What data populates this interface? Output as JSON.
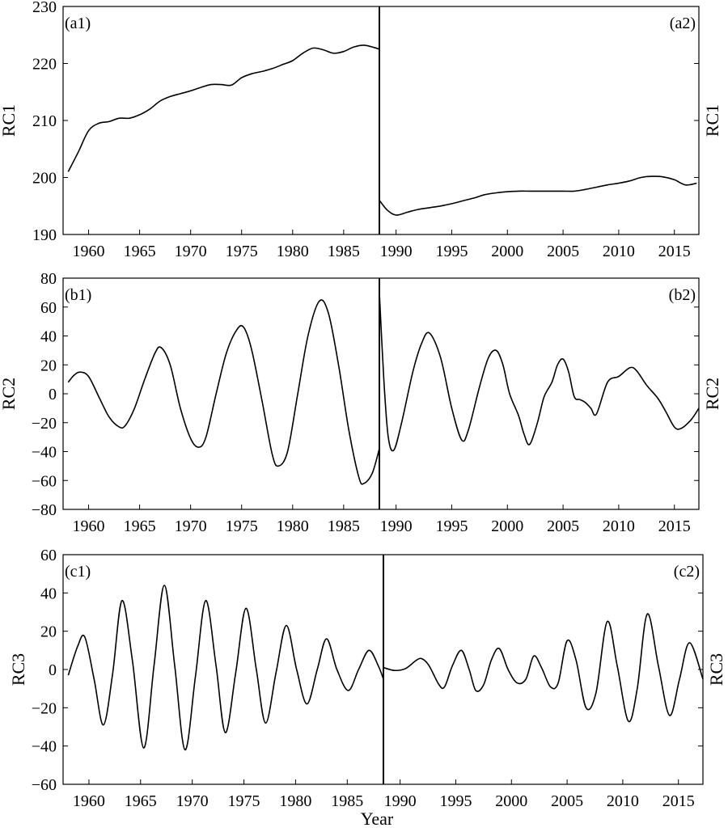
{
  "xlabel": "Year",
  "chart_data": [
    {
      "type": "line",
      "ylabel": "RC1",
      "ylim": [
        190,
        230
      ],
      "yticks": [
        190,
        200,
        210,
        220,
        230
      ],
      "left": {
        "tag": "(a1)",
        "xlim": [
          1957.5,
          1988.5
        ],
        "xticks": [
          1960,
          1965,
          1970,
          1975,
          1980,
          1985
        ],
        "x": [
          1958,
          1959,
          1960,
          1961,
          1962,
          1963,
          1964,
          1965,
          1966,
          1967,
          1968,
          1969,
          1970,
          1971,
          1972,
          1973,
          1974,
          1975,
          1976,
          1977,
          1978,
          1979,
          1980,
          1981,
          1982,
          1983,
          1984,
          1985,
          1986,
          1987,
          1988,
          1988.5
        ],
        "y": [
          201,
          204.5,
          208.2,
          209.5,
          209.8,
          210.4,
          210.4,
          211,
          212,
          213.4,
          214.2,
          214.7,
          215.2,
          215.8,
          216.3,
          216.3,
          216.2,
          217.5,
          218.2,
          218.6,
          219.1,
          219.8,
          220.5,
          221.8,
          222.7,
          222.4,
          221.8,
          222.1,
          222.9,
          223.2,
          222.8,
          222.5
        ]
      },
      "right": {
        "tag": "(a2)",
        "xlim": [
          1988.5,
          2017.2
        ],
        "xticks": [
          1990,
          1995,
          2000,
          2005,
          2010,
          2015
        ],
        "x": [
          1988.5,
          1989.2,
          1990,
          1991,
          1992,
          1993,
          1994,
          1995,
          1996,
          1997,
          1998,
          1999,
          2000,
          2001,
          2002,
          2003,
          2004,
          2005,
          2006,
          2007,
          2008,
          2009,
          2010,
          2011,
          2012,
          2013,
          2014,
          2015,
          2016,
          2017
        ],
        "y": [
          196,
          194.3,
          193.4,
          193.9,
          194.4,
          194.7,
          195,
          195.4,
          195.9,
          196.4,
          197,
          197.3,
          197.5,
          197.6,
          197.6,
          197.6,
          197.6,
          197.6,
          197.6,
          197.9,
          198.3,
          198.7,
          199,
          199.4,
          200,
          200.2,
          200.1,
          199.6,
          198.7,
          199
        ]
      }
    },
    {
      "type": "line",
      "ylabel": "RC2",
      "ylim": [
        -80,
        80
      ],
      "yticks": [
        -80,
        -60,
        -40,
        -20,
        0,
        20,
        40,
        60,
        80
      ],
      "left": {
        "tag": "(b1)",
        "xlim": [
          1957.5,
          1988.5
        ],
        "xticks": [
          1960,
          1965,
          1970,
          1975,
          1980,
          1985
        ],
        "x": [
          1958,
          1958.6,
          1959.2,
          1960,
          1961,
          1962,
          1963,
          1963.6,
          1964.5,
          1965.5,
          1966.5,
          1967.1,
          1968,
          1969,
          1970,
          1970.8,
          1971.5,
          1972.5,
          1973.5,
          1974.5,
          1975.2,
          1976,
          1977,
          1978,
          1978.6,
          1979.5,
          1980.5,
          1981.5,
          1982.6,
          1983.5,
          1984.5,
          1985.5,
          1986.5,
          1987,
          1987.8,
          1988.5
        ],
        "y": [
          8,
          13,
          15,
          12,
          -2,
          -16,
          -23,
          -22,
          -10,
          10,
          28,
          32,
          20,
          -10,
          -31,
          -37,
          -30,
          0,
          28,
          44,
          46,
          30,
          -5,
          -42,
          -50,
          -40,
          0,
          40,
          64,
          56,
          20,
          -25,
          -58,
          -62,
          -55,
          -38
        ]
      },
      "right": {
        "tag": "(b2)",
        "xlim": [
          1988.5,
          2017.2
        ],
        "xticks": [
          1990,
          1995,
          2000,
          2005,
          2010,
          2015
        ],
        "x": [
          1988.5,
          1988.9,
          1989.3,
          1989.8,
          1990.5,
          1991.5,
          1992.3,
          1993,
          1994,
          1995,
          1995.9,
          1996.5,
          1997.5,
          1998.3,
          1999,
          1999.6,
          2000.2,
          2001,
          2001.5,
          2002,
          2002.7,
          2003.3,
          2004,
          2004.5,
          2005,
          2005.5,
          2006,
          2006.5,
          2007,
          2007.5,
          2008,
          2009,
          2010,
          2011,
          2011.6,
          2012.5,
          2013.5,
          2014.2,
          2015,
          2015.6,
          2016.5,
          2017.2
        ],
        "y": [
          70,
          10,
          -30,
          -39,
          -20,
          15,
          35,
          42,
          25,
          -10,
          -32,
          -25,
          5,
          25,
          30,
          20,
          0,
          -15,
          -28,
          -35,
          -20,
          -2,
          8,
          20,
          24,
          15,
          -2,
          -4,
          -6,
          -10,
          -14,
          8,
          12,
          18,
          16,
          6,
          -3,
          -12,
          -23,
          -24,
          -18,
          -10
        ]
      }
    },
    {
      "type": "line",
      "ylabel": "RC3",
      "ylim": [
        -60,
        60
      ],
      "yticks": [
        -60,
        -40,
        -20,
        0,
        20,
        40,
        60
      ],
      "left": {
        "tag": "(c1)",
        "xlim": [
          1957.5,
          1988.5
        ],
        "xticks": [
          1960,
          1965,
          1970,
          1975,
          1980,
          1985
        ],
        "x": [
          1958,
          1958.9,
          1959.6,
          1960.5,
          1961.4,
          1962.3,
          1963.2,
          1964.2,
          1965.3,
          1966.3,
          1967.3,
          1968.3,
          1969.3,
          1970.3,
          1971.3,
          1972.3,
          1973.2,
          1974.2,
          1975.2,
          1976.2,
          1977.1,
          1978.1,
          1979.1,
          1980.1,
          1981.1,
          1982.1,
          1983,
          1984,
          1985.1,
          1986.1,
          1987.1,
          1988,
          1988.5
        ],
        "y": [
          -3,
          12,
          17,
          -5,
          -29,
          -2,
          36,
          5,
          -41,
          2,
          44,
          2,
          -42,
          -4,
          36,
          2,
          -33,
          -2,
          32,
          0,
          -28,
          -2,
          23,
          0,
          -18,
          0,
          16,
          0,
          -11,
          0,
          10,
          2,
          -5
        ]
      },
      "right": {
        "tag": "(c2)",
        "xlim": [
          1988.5,
          2017.2
        ],
        "xticks": [
          1990,
          1995,
          2000,
          2005,
          2010,
          2015
        ],
        "x": [
          1988.5,
          1989.5,
          1990.5,
          1991.5,
          1992,
          1992.6,
          1993.5,
          1994,
          1994.7,
          1995.5,
          1996.2,
          1996.8,
          1997.5,
          1998.2,
          1998.9,
          1999.7,
          2000.5,
          2001.3,
          2002,
          2002.7,
          2003.5,
          2004.2,
          2005,
          2005.8,
          2006.7,
          2007.6,
          2008.6,
          2009.5,
          2010.5,
          2011.3,
          2012.2,
          2013.2,
          2014.2,
          2015.1,
          2016,
          2017.2
        ],
        "y": [
          1,
          -0.5,
          0.5,
          5,
          5.5,
          2,
          -8,
          -9,
          2,
          10,
          0,
          -11,
          -8,
          5,
          11,
          0,
          -7,
          -5,
          7,
          1,
          -9,
          -7,
          15,
          5,
          -20,
          -12,
          25,
          2,
          -27,
          -10,
          29,
          2,
          -24,
          -5,
          14,
          -5
        ]
      }
    }
  ]
}
